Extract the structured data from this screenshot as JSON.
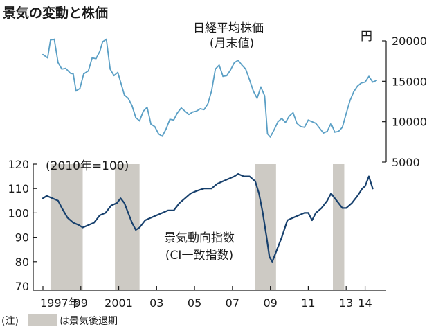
{
  "title": "景気の変動と株価",
  "note_label": "(注)",
  "legend_label": "は景気後退期",
  "colors": {
    "stock": "#5a9fc5",
    "ci": "#17406d",
    "recession": "#cdcac4",
    "axis": "#1a1a1a"
  },
  "chart_data": [
    {
      "type": "line",
      "title": "日経平均株価",
      "subtitle": "(月末値)",
      "unit_label": "円",
      "yaxis": "right",
      "ylim": [
        5000,
        20000
      ],
      "yticks": [
        5000,
        10000,
        15000,
        20000
      ],
      "ytick_labels": [
        "5000",
        "10000",
        "15000",
        "20000"
      ],
      "series": [
        {
          "name": "日経平均株価",
          "x": [
            1997.0,
            1997.25,
            1997.4,
            1997.6,
            1997.8,
            1998.0,
            1998.2,
            1998.45,
            1998.6,
            1998.75,
            1998.95,
            1999.15,
            1999.4,
            1999.6,
            1999.8,
            2000.0,
            2000.15,
            2000.35,
            2000.55,
            2000.75,
            2000.95,
            2001.1,
            2001.3,
            2001.5,
            2001.7,
            2001.9,
            2002.1,
            2002.3,
            2002.5,
            2002.7,
            2002.9,
            2003.1,
            2003.3,
            2003.5,
            2003.7,
            2003.9,
            2004.1,
            2004.3,
            2004.5,
            2004.7,
            2004.9,
            2005.1,
            2005.3,
            2005.5,
            2005.7,
            2005.9,
            2006.1,
            2006.3,
            2006.5,
            2006.7,
            2006.9,
            2007.1,
            2007.3,
            2007.5,
            2007.7,
            2007.9,
            2008.1,
            2008.3,
            2008.5,
            2008.7,
            2008.85,
            2009.0,
            2009.2,
            2009.4,
            2009.6,
            2009.8,
            2010.0,
            2010.2,
            2010.4,
            2010.6,
            2010.8,
            2011.0,
            2011.2,
            2011.4,
            2011.6,
            2011.8,
            2012.0,
            2012.2,
            2012.4,
            2012.6,
            2012.8,
            2013.0,
            2013.2,
            2013.4,
            2013.6,
            2013.8,
            2014.0,
            2014.2,
            2014.4,
            2014.6
          ],
          "values": [
            18300,
            17900,
            20100,
            20200,
            17300,
            16500,
            16600,
            16000,
            15900,
            13800,
            14100,
            15900,
            16300,
            17900,
            17800,
            18700,
            19900,
            20200,
            16500,
            15700,
            16100,
            14900,
            13300,
            12900,
            12000,
            10500,
            10100,
            11300,
            11800,
            9700,
            9400,
            8500,
            8200,
            9100,
            10300,
            10200,
            11100,
            11700,
            11300,
            10900,
            11200,
            11300,
            11600,
            11500,
            12200,
            13800,
            16500,
            17000,
            15600,
            15700,
            16400,
            17300,
            17600,
            17000,
            16500,
            15200,
            13800,
            12900,
            14300,
            13200,
            8500,
            8100,
            9000,
            10000,
            10400,
            9900,
            10700,
            11100,
            9800,
            9400,
            9300,
            10200,
            10000,
            9800,
            9200,
            8600,
            8800,
            9800,
            8700,
            8800,
            9300,
            11000,
            12600,
            13700,
            14400,
            14800,
            14900,
            15600,
            14900,
            15100
          ]
        }
      ]
    },
    {
      "type": "line",
      "title": "景気動向指数",
      "subtitle": "(CI一致指数)",
      "base_label": "(2010年=100)",
      "yaxis": "left",
      "ylim": [
        70,
        120
      ],
      "yticks": [
        70,
        80,
        90,
        100,
        110,
        120
      ],
      "ytick_labels": [
        "70",
        "80",
        "90",
        "100",
        "110",
        "120"
      ],
      "xlim": [
        1997.0,
        2014.6
      ],
      "xticks": [
        1997,
        1999,
        2001,
        2003,
        2005,
        2007,
        2009,
        2011,
        2013,
        2014
      ],
      "xtick_labels": [
        "1997年",
        "99",
        "2001",
        "03",
        "05",
        "07",
        "09",
        "11",
        "13",
        "14"
      ],
      "recessions": [
        [
          1997.4,
          1999.1
        ],
        [
          2000.8,
          2002.1
        ],
        [
          2008.2,
          2009.3
        ],
        [
          2012.3,
          2012.9
        ]
      ],
      "series": [
        {
          "name": "CI一致指数",
          "x": [
            1997.0,
            1997.2,
            1997.5,
            1997.8,
            1998.0,
            1998.3,
            1998.6,
            1998.9,
            1999.1,
            1999.4,
            1999.7,
            2000.0,
            2000.3,
            2000.6,
            2000.9,
            2001.1,
            2001.3,
            2001.5,
            2001.7,
            2001.9,
            2002.1,
            2002.4,
            2002.7,
            2003.0,
            2003.3,
            2003.6,
            2003.9,
            2004.2,
            2004.5,
            2004.8,
            2005.1,
            2005.5,
            2005.9,
            2006.2,
            2006.5,
            2006.8,
            2007.1,
            2007.3,
            2007.6,
            2007.9,
            2008.2,
            2008.4,
            2008.6,
            2008.8,
            2008.95,
            2009.1,
            2009.3,
            2009.6,
            2009.9,
            2010.2,
            2010.5,
            2010.8,
            2011.0,
            2011.2,
            2011.4,
            2011.7,
            2012.0,
            2012.2,
            2012.5,
            2012.8,
            2013.0,
            2013.3,
            2013.6,
            2013.85,
            2014.0,
            2014.2,
            2014.4
          ],
          "values": [
            106,
            107,
            106,
            105,
            102,
            98,
            96,
            95,
            94,
            95,
            96,
            99,
            100,
            103,
            104,
            106,
            104,
            100,
            96,
            93,
            94,
            97,
            98,
            99,
            100,
            101,
            101,
            104,
            106,
            108,
            109,
            110,
            110,
            112,
            113,
            114,
            115,
            116,
            115,
            115,
            113,
            108,
            100,
            90,
            82,
            80,
            84,
            90,
            97,
            98,
            99,
            100,
            100,
            97,
            100,
            102,
            105,
            108,
            105,
            102,
            102,
            104,
            107,
            110,
            111,
            115,
            110
          ]
        }
      ]
    }
  ]
}
